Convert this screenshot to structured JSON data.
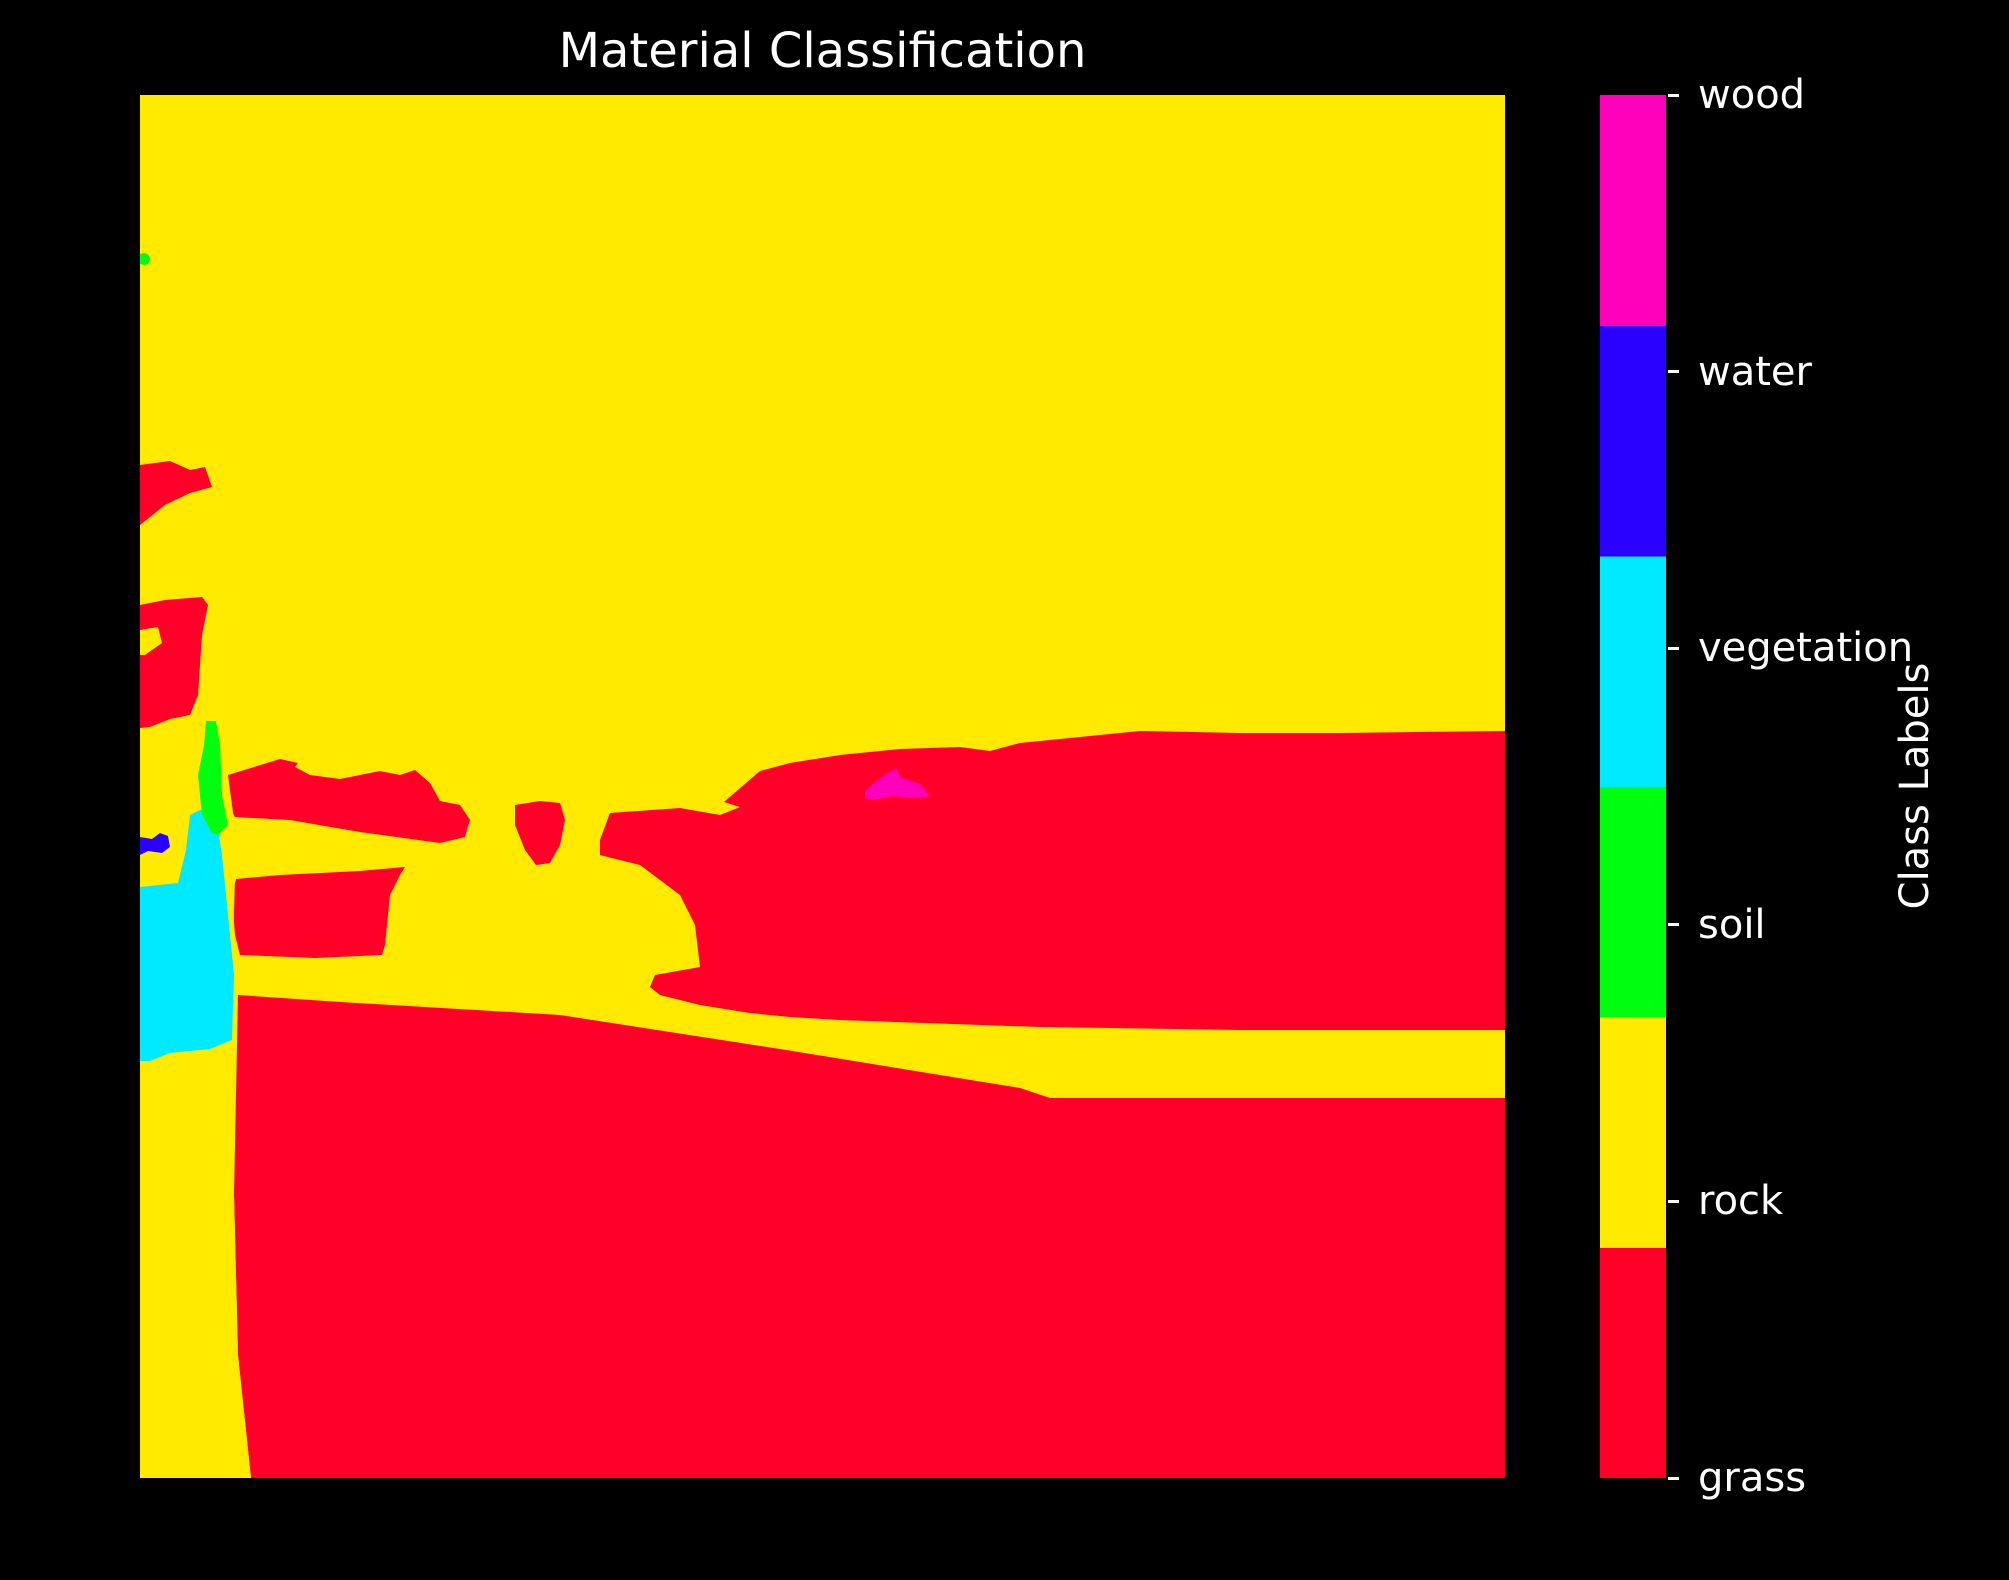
{
  "chart_data": {
    "type": "heatmap",
    "title": "Material Classification",
    "colorbar": {
      "label": "Class Labels",
      "classes": [
        {
          "name": "grass",
          "color": "#ff0029"
        },
        {
          "name": "rock",
          "color": "#ffea00"
        },
        {
          "name": "soil",
          "color": "#00ff0e"
        },
        {
          "name": "vegetation",
          "color": "#00eaff"
        },
        {
          "name": "water",
          "color": "#2a00ff"
        },
        {
          "name": "wood",
          "color": "#ff00bb"
        }
      ]
    },
    "axes": {
      "ticks": "hidden",
      "grid": false
    },
    "background_class": "rock"
  }
}
